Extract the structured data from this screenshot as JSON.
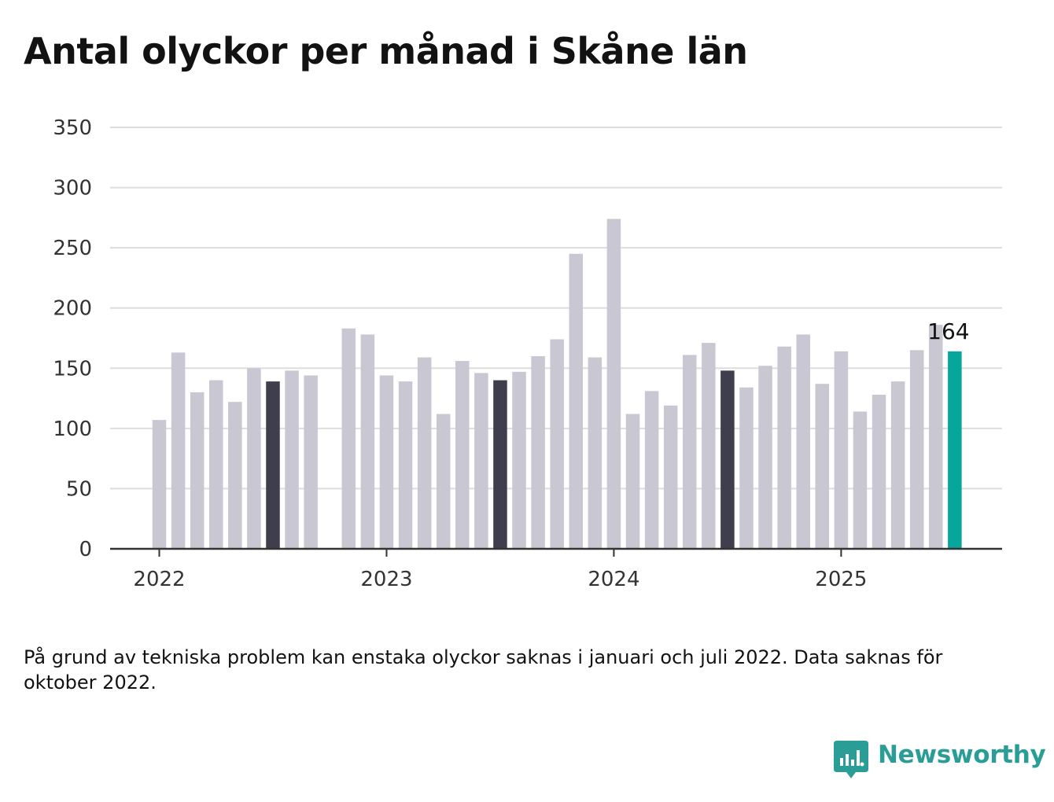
{
  "title": "Antal olyckor per månad i Skåne län",
  "note": "På grund av tekniska problem kan enstaka olyckor saknas i januari och juli 2022. Data saknas för oktober 2022.",
  "brand": {
    "name": "Newsworthy",
    "icon": "newsworthy-chart-bubble-icon"
  },
  "chart_data": {
    "type": "bar",
    "title": "Antal olyckor per månad i Skåne län",
    "xlabel": "",
    "ylabel": "",
    "ylim": [
      0,
      350
    ],
    "yticks": [
      0,
      50,
      100,
      150,
      200,
      250,
      300,
      350
    ],
    "xtick_labels": [
      "2022",
      "2023",
      "2024",
      "2025"
    ],
    "grid": true,
    "colors": {
      "default": "#c8c7d2",
      "same_month_previous_years": "#3f3e4c",
      "latest": "#06a69d",
      "grid": "#dddddd",
      "axis": "#333333"
    },
    "categories": [
      "2022-01",
      "2022-02",
      "2022-03",
      "2022-04",
      "2022-05",
      "2022-06",
      "2022-07",
      "2022-08",
      "2022-09",
      "2022-10",
      "2022-11",
      "2022-12",
      "2023-01",
      "2023-02",
      "2023-03",
      "2023-04",
      "2023-05",
      "2023-06",
      "2023-07",
      "2023-08",
      "2023-09",
      "2023-10",
      "2023-11",
      "2023-12",
      "2024-01",
      "2024-02",
      "2024-03",
      "2024-04",
      "2024-05",
      "2024-06",
      "2024-07",
      "2024-08",
      "2024-09",
      "2024-10",
      "2024-11",
      "2024-12",
      "2025-01",
      "2025-02",
      "2025-03",
      "2025-04",
      "2025-05",
      "2025-06",
      "2025-07"
    ],
    "values": [
      107,
      163,
      130,
      140,
      122,
      150,
      139,
      148,
      144,
      null,
      183,
      178,
      144,
      139,
      159,
      112,
      156,
      146,
      140,
      147,
      160,
      174,
      245,
      159,
      274,
      112,
      131,
      119,
      161,
      171,
      148,
      134,
      152,
      168,
      178,
      137,
      164,
      114,
      128,
      139,
      165,
      186,
      164
    ],
    "highlight": {
      "same_month_previous_years": [
        "2022-07",
        "2023-07",
        "2024-07"
      ],
      "latest": "2025-07"
    },
    "annotations": [
      {
        "category": "2025-07",
        "text": "164"
      }
    ]
  }
}
